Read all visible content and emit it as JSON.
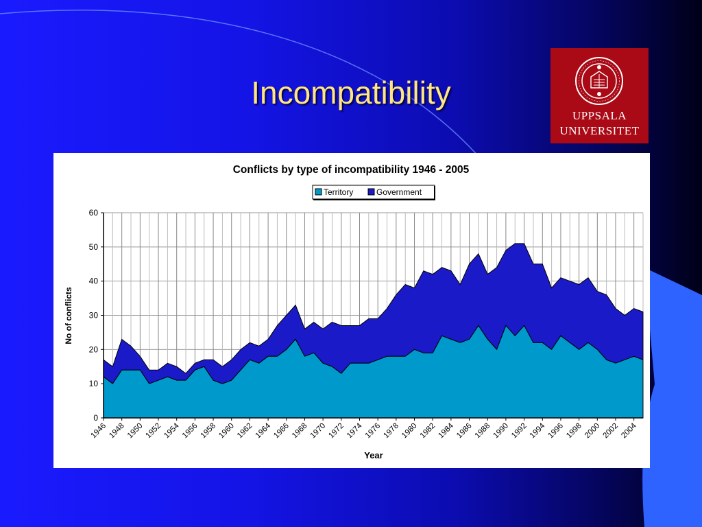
{
  "slide": {
    "title": "Incompatibility"
  },
  "logo": {
    "line1": "UPPSALA",
    "line2": "UNIVERSITET",
    "seal_text": "REGIA ACADEMIA UPSALIENSIS",
    "bg_color": "#a90a16"
  },
  "colors": {
    "title": "#ffe680",
    "territory": "#0099cc",
    "government": "#1a1ac8"
  },
  "chart_data": {
    "type": "area",
    "stacked": true,
    "title": "Conflicts by type of incompatibility 1946 - 2005",
    "xlabel": "Year",
    "ylabel": "No of conflicts",
    "ylim": [
      0,
      60
    ],
    "yticks": [
      0,
      10,
      20,
      30,
      40,
      50,
      60
    ],
    "legend": [
      "Territory",
      "Government"
    ],
    "legend_position": "top-center",
    "x": [
      1946,
      1947,
      1948,
      1949,
      1950,
      1951,
      1952,
      1953,
      1954,
      1955,
      1956,
      1957,
      1958,
      1959,
      1960,
      1961,
      1962,
      1963,
      1964,
      1965,
      1966,
      1967,
      1968,
      1969,
      1970,
      1971,
      1972,
      1973,
      1974,
      1975,
      1976,
      1977,
      1978,
      1979,
      1980,
      1981,
      1982,
      1983,
      1984,
      1985,
      1986,
      1987,
      1988,
      1989,
      1990,
      1991,
      1992,
      1993,
      1994,
      1995,
      1996,
      1997,
      1998,
      1999,
      2000,
      2001,
      2002,
      2003,
      2004,
      2005
    ],
    "x_tick_labels": [
      "1946",
      "1948",
      "1950",
      "1952",
      "1954",
      "1956",
      "1958",
      "1960",
      "1962",
      "1964",
      "1966",
      "1968",
      "1970",
      "1972",
      "1974",
      "1976",
      "1978",
      "1980",
      "1982",
      "1984",
      "1986",
      "1988",
      "1990",
      "1992",
      "1994",
      "1996",
      "1998",
      "2000",
      "2002",
      "2004"
    ],
    "series": [
      {
        "name": "Territory",
        "values": [
          12,
          10,
          14,
          14,
          14,
          10,
          11,
          12,
          11,
          11,
          14,
          15,
          11,
          10,
          11,
          14,
          17,
          16,
          18,
          18,
          20,
          23,
          18,
          19,
          16,
          15,
          13,
          16,
          16,
          16,
          17,
          18,
          18,
          18,
          20,
          19,
          19,
          24,
          23,
          22,
          23,
          27,
          23,
          20,
          27,
          24,
          27,
          22,
          22,
          20,
          24,
          22,
          20,
          22,
          20,
          17,
          16,
          17,
          18,
          17
        ]
      },
      {
        "name": "Government",
        "values": [
          5,
          5,
          9,
          7,
          4,
          4,
          3,
          4,
          4,
          2,
          2,
          2,
          6,
          5,
          6,
          6,
          5,
          5,
          5,
          9,
          10,
          10,
          8,
          9,
          10,
          13,
          14,
          11,
          11,
          13,
          12,
          14,
          18,
          21,
          18,
          24,
          23,
          20,
          20,
          17,
          22,
          21,
          19,
          24,
          22,
          27,
          24,
          23,
          23,
          18,
          17,
          18,
          19,
          19,
          17,
          19,
          16,
          13,
          14,
          14
        ]
      }
    ],
    "grid": "vertical-and-horizontal"
  }
}
